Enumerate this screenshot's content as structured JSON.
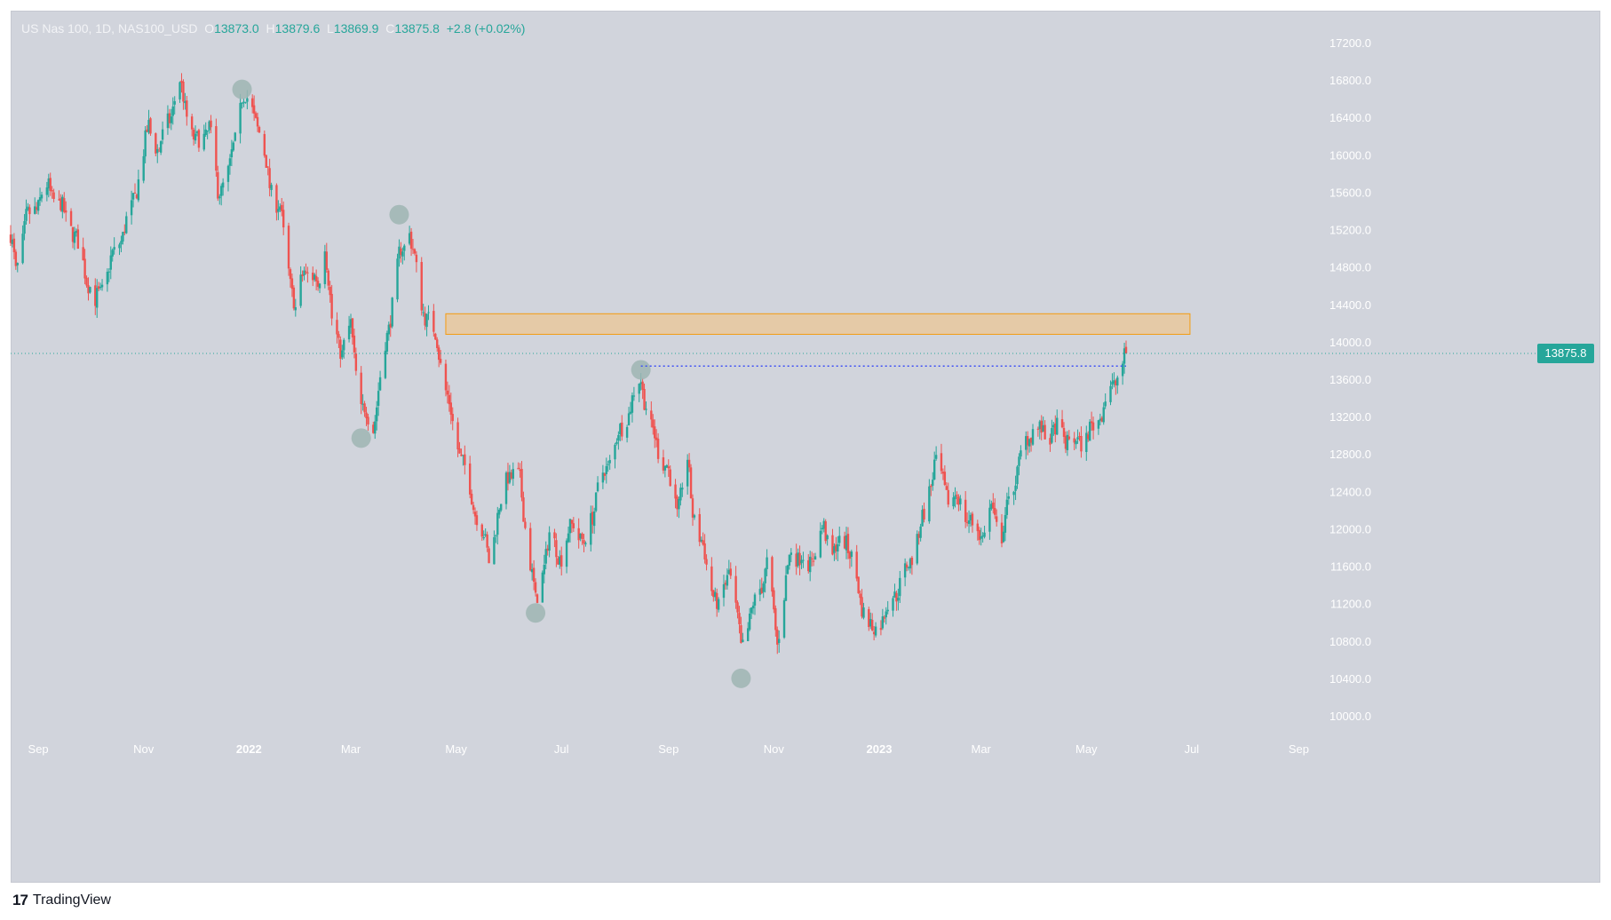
{
  "legend": {
    "symbol": "US Nas 100, 1D, NAS100_USD",
    "o_label": "O",
    "o_value": "13873.0",
    "h_label": "H",
    "h_value": "13879.6",
    "l_label": "L",
    "l_value": "13869.9",
    "c_label": "C",
    "c_value": "13875.8",
    "change": "+2.8 (+0.02%)"
  },
  "branding": {
    "name": "TradingView"
  },
  "colors": {
    "background": "#d1d4dc",
    "up": "#26a69a",
    "down": "#ef5350",
    "zone_fill": "#f5c17b",
    "zone_border": "#f39c12",
    "marker": "#9fb5b3",
    "level_line": "#3f51f5",
    "axis_text": "#ffffff"
  },
  "chart_data": {
    "type": "candlestick",
    "title": "",
    "xlabel": "",
    "ylabel": "",
    "ylim": [
      9800,
      17500
    ],
    "y_ticks": [
      "17200.0",
      "16800.0",
      "16400.0",
      "16000.0",
      "15600.0",
      "15200.0",
      "14800.0",
      "14400.0",
      "14000.0",
      "13600.0",
      "13200.0",
      "12800.0",
      "12400.0",
      "12000.0",
      "11600.0",
      "11200.0",
      "10800.0",
      "10400.0",
      "10000.0"
    ],
    "x_ticks": [
      "Sep",
      "Nov",
      "2022",
      "Mar",
      "May",
      "Jul",
      "Sep",
      "Nov",
      "2023",
      "Mar",
      "May",
      "Jul",
      "Sep"
    ],
    "last_price": "13875.8",
    "path_anchors": [
      [
        "2021-08-16",
        15100
      ],
      [
        "2021-08-19",
        14780
      ],
      [
        "2021-08-25",
        15300
      ],
      [
        "2021-09-07",
        15650
      ],
      [
        "2021-09-20",
        15250
      ],
      [
        "2021-10-04",
        14400
      ],
      [
        "2021-10-14",
        14900
      ],
      [
        "2021-10-25",
        15400
      ],
      [
        "2021-11-04",
        16300
      ],
      [
        "2021-11-10",
        16050
      ],
      [
        "2021-11-22",
        16750
      ],
      [
        "2021-12-01",
        16100
      ],
      [
        "2021-12-09",
        16300
      ],
      [
        "2021-12-14",
        15600
      ],
      [
        "2021-12-21",
        15850
      ],
      [
        "2021-12-28",
        16650
      ],
      [
        "2022-01-05",
        16400
      ],
      [
        "2022-01-13",
        15700
      ],
      [
        "2022-01-19",
        15400
      ],
      [
        "2022-01-28",
        14300
      ],
      [
        "2022-02-02",
        14800
      ],
      [
        "2022-02-10",
        14600
      ],
      [
        "2022-02-14",
        15100
      ],
      [
        "2022-02-18",
        14200
      ],
      [
        "2022-02-24",
        13900
      ],
      [
        "2022-03-01",
        14150
      ],
      [
        "2022-03-07",
        13300
      ],
      [
        "2022-03-14",
        13100
      ],
      [
        "2022-03-29",
        14900
      ],
      [
        "2022-04-04",
        15200
      ],
      [
        "2022-04-11",
        14400
      ],
      [
        "2022-04-20",
        14000
      ],
      [
        "2022-04-27",
        13300
      ],
      [
        "2022-05-02",
        12900
      ],
      [
        "2022-05-09",
        12400
      ],
      [
        "2022-05-20",
        11700
      ],
      [
        "2022-05-31",
        12600
      ],
      [
        "2022-06-07",
        12500
      ],
      [
        "2022-06-16",
        11200
      ],
      [
        "2022-06-24",
        11900
      ],
      [
        "2022-07-01",
        11700
      ],
      [
        "2022-07-08",
        12100
      ],
      [
        "2022-07-14",
        11800
      ],
      [
        "2022-07-22",
        12400
      ],
      [
        "2022-08-01",
        12900
      ],
      [
        "2022-08-16",
        13600
      ],
      [
        "2022-08-22",
        13050
      ],
      [
        "2022-08-31",
        12650
      ],
      [
        "2022-09-06",
        12200
      ],
      [
        "2022-09-12",
        12700
      ],
      [
        "2022-09-15",
        12200
      ],
      [
        "2022-09-22",
        11700
      ],
      [
        "2022-09-30",
        11100
      ],
      [
        "2022-10-06",
        11600
      ],
      [
        "2022-10-13",
        10750
      ],
      [
        "2022-10-20",
        11150
      ],
      [
        "2022-10-28",
        11600
      ],
      [
        "2022-11-03",
        10800
      ],
      [
        "2022-11-11",
        11800
      ],
      [
        "2022-11-21",
        11600
      ],
      [
        "2022-11-30",
        12000
      ],
      [
        "2022-12-05",
        11750
      ],
      [
        "2022-12-13",
        11900
      ],
      [
        "2022-12-21",
        11250
      ],
      [
        "2022-12-28",
        10900
      ],
      [
        "2023-01-06",
        11150
      ],
      [
        "2023-01-18",
        11600
      ],
      [
        "2023-01-27",
        12150
      ],
      [
        "2023-02-02",
        12700
      ],
      [
        "2023-02-10",
        12350
      ],
      [
        "2023-02-17",
        12300
      ],
      [
        "2023-02-24",
        12000
      ],
      [
        "2023-03-02",
        11950
      ],
      [
        "2023-03-07",
        12200
      ],
      [
        "2023-03-13",
        11950
      ],
      [
        "2023-03-22",
        12650
      ],
      [
        "2023-03-31",
        13100
      ],
      [
        "2023-04-06",
        13000
      ],
      [
        "2023-04-14",
        13050
      ],
      [
        "2023-04-24",
        12900
      ],
      [
        "2023-05-04",
        13050
      ],
      [
        "2023-05-12",
        13350
      ],
      [
        "2023-05-19",
        13650
      ],
      [
        "2023-05-25",
        13870
      ]
    ],
    "annotations": {
      "resistance_zone": {
        "from": "2022-04-25",
        "to": "2023-06-30",
        "low": 14080,
        "high": 14300
      },
      "level_line": {
        "from": "2022-08-16",
        "to": "2023-05-24",
        "value": 13740
      },
      "swing_markers": [
        [
          "2021-12-28",
          16700
        ],
        [
          "2022-03-07",
          12970
        ],
        [
          "2022-03-29",
          15360
        ],
        [
          "2022-06-16",
          11100
        ],
        [
          "2022-08-16",
          13700
        ],
        [
          "2022-10-13",
          10400
        ]
      ]
    }
  }
}
